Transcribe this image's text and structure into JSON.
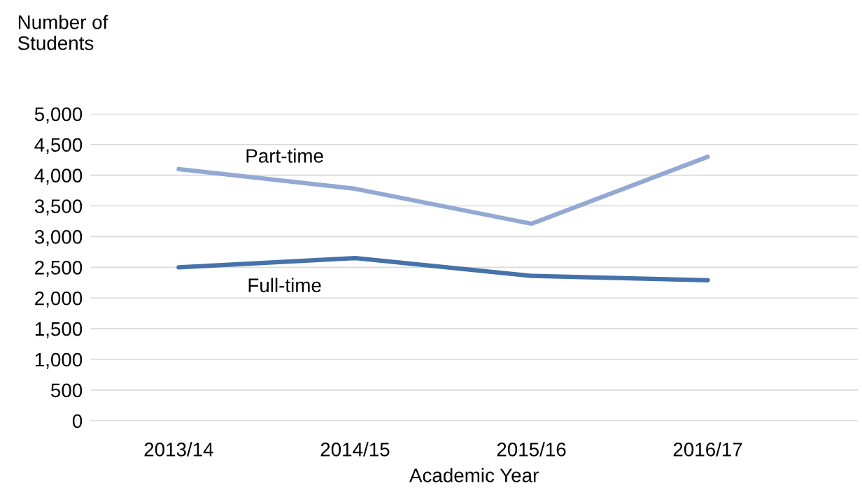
{
  "chart_data": {
    "type": "line",
    "ylabel": "Number of\nStudents",
    "xlabel": "Academic Year",
    "categories": [
      "2013/14",
      "2014/15",
      "2015/16",
      "2016/17"
    ],
    "series": [
      {
        "name": "Part-time",
        "color": "#93a9d3",
        "values": [
          4100,
          3780,
          3210,
          4300
        ]
      },
      {
        "name": "Full-time",
        "color": "#4672aa",
        "values": [
          2500,
          2650,
          2360,
          2290
        ]
      }
    ],
    "ylim": [
      0,
      5000
    ],
    "yticks": [
      {
        "value": 0,
        "label": "0"
      },
      {
        "value": 500,
        "label": "500"
      },
      {
        "value": 1000,
        "label": "1,000"
      },
      {
        "value": 1500,
        "label": "1,500"
      },
      {
        "value": 2000,
        "label": "2,000"
      },
      {
        "value": 2500,
        "label": "2,500"
      },
      {
        "value": 3000,
        "label": "3,000"
      },
      {
        "value": 3500,
        "label": "3,500"
      },
      {
        "value": 4000,
        "label": "4,000"
      },
      {
        "value": 4500,
        "label": "4,500"
      },
      {
        "value": 5000,
        "label": "5,000"
      }
    ],
    "grid": "y",
    "legend": false,
    "marker": "none",
    "line_style": "solid"
  }
}
